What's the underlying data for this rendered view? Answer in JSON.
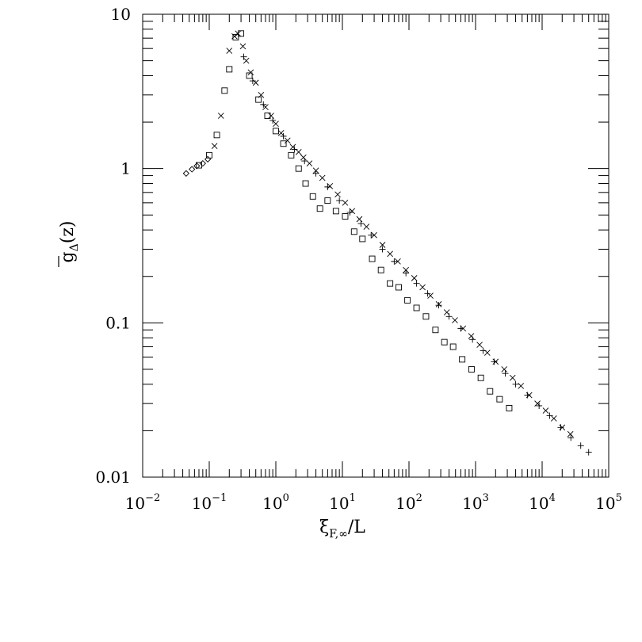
{
  "chart_data": {
    "type": "scatter",
    "title": "",
    "xlabel": "ξ_F,∞/L",
    "ylabel": "g_Δ(z)",
    "x_scale": "log",
    "y_scale": "log",
    "xlim": [
      0.01,
      100000
    ],
    "ylim": [
      0.01,
      10
    ],
    "grid": false,
    "legend": "none",
    "x_ticks": [
      {
        "base": "10",
        "exp": "−2"
      },
      {
        "base": "10",
        "exp": "−1"
      },
      {
        "base": "10",
        "exp": "0"
      },
      {
        "base": "10",
        "exp": "1"
      },
      {
        "base": "10",
        "exp": "2"
      },
      {
        "base": "10",
        "exp": "3"
      },
      {
        "base": "10",
        "exp": "4"
      },
      {
        "base": "10",
        "exp": "5"
      }
    ],
    "y_ticks": [
      "0.01",
      "0.1",
      "1",
      "10"
    ],
    "series": [
      {
        "marker": "square",
        "x": [
          0.07,
          0.1,
          0.13,
          0.17,
          0.2,
          0.25,
          0.3,
          0.4,
          0.55,
          0.75,
          1.0,
          1.3,
          1.7,
          2.2,
          2.8,
          3.6,
          4.6,
          6.0,
          8.0,
          11,
          15,
          20,
          28,
          38,
          52,
          70,
          95,
          130,
          180,
          250,
          340,
          460,
          630,
          870,
          1200,
          1650,
          2300,
          3200
        ],
        "y": [
          1.05,
          1.22,
          1.65,
          3.2,
          4.4,
          7.1,
          7.5,
          4.0,
          2.8,
          2.2,
          1.75,
          1.45,
          1.22,
          1.0,
          0.8,
          0.66,
          0.55,
          0.62,
          0.53,
          0.49,
          0.39,
          0.35,
          0.26,
          0.22,
          0.18,
          0.17,
          0.14,
          0.125,
          0.11,
          0.09,
          0.075,
          0.07,
          0.058,
          0.05,
          0.044,
          0.036,
          0.032,
          0.028
        ]
      },
      {
        "marker": "diamond",
        "x": [
          0.045,
          0.055,
          0.065,
          0.08,
          0.095
        ],
        "y": [
          0.93,
          0.99,
          1.04,
          1.08,
          1.15
        ]
      },
      {
        "marker": "cross",
        "x": [
          0.12,
          0.15,
          0.2,
          0.24,
          0.27,
          0.32,
          0.36,
          0.42,
          0.5,
          0.6,
          0.7,
          0.85,
          1.0,
          1.2,
          1.5,
          1.8,
          2.2,
          2.6,
          3.2,
          4.0,
          5.0,
          6.5,
          8.5,
          11,
          14,
          18,
          23,
          30,
          40,
          52,
          68,
          90,
          120,
          160,
          210,
          280,
          370,
          490,
          650,
          860,
          1150,
          1500,
          2000,
          2700,
          3600,
          4800,
          6400,
          8500,
          11300,
          15000,
          20000,
          26600
        ],
        "y": [
          1.4,
          2.2,
          5.8,
          7.2,
          7.5,
          6.2,
          5.0,
          4.2,
          3.6,
          3.0,
          2.5,
          2.2,
          1.95,
          1.7,
          1.52,
          1.38,
          1.28,
          1.18,
          1.08,
          0.97,
          0.87,
          0.77,
          0.68,
          0.6,
          0.53,
          0.47,
          0.42,
          0.37,
          0.32,
          0.28,
          0.25,
          0.22,
          0.195,
          0.17,
          0.15,
          0.132,
          0.117,
          0.104,
          0.092,
          0.082,
          0.072,
          0.064,
          0.056,
          0.05,
          0.044,
          0.039,
          0.034,
          0.03,
          0.027,
          0.024,
          0.021,
          0.019
        ]
      },
      {
        "marker": "plus",
        "x": [
          0.33,
          0.45,
          0.65,
          0.9,
          1.3,
          1.9,
          2.7,
          4.0,
          6.0,
          9.0,
          13,
          19,
          27,
          40,
          60,
          90,
          130,
          190,
          280,
          400,
          600,
          900,
          1300,
          1900,
          2800,
          4000,
          6000,
          9000,
          13000,
          19000,
          27000,
          38000,
          50000
        ],
        "y": [
          5.3,
          3.7,
          2.6,
          2.05,
          1.62,
          1.33,
          1.12,
          0.93,
          0.76,
          0.62,
          0.52,
          0.44,
          0.37,
          0.3,
          0.25,
          0.21,
          0.18,
          0.155,
          0.13,
          0.11,
          0.092,
          0.078,
          0.066,
          0.056,
          0.047,
          0.04,
          0.034,
          0.029,
          0.025,
          0.021,
          0.018,
          0.016,
          0.0145
        ]
      }
    ]
  }
}
